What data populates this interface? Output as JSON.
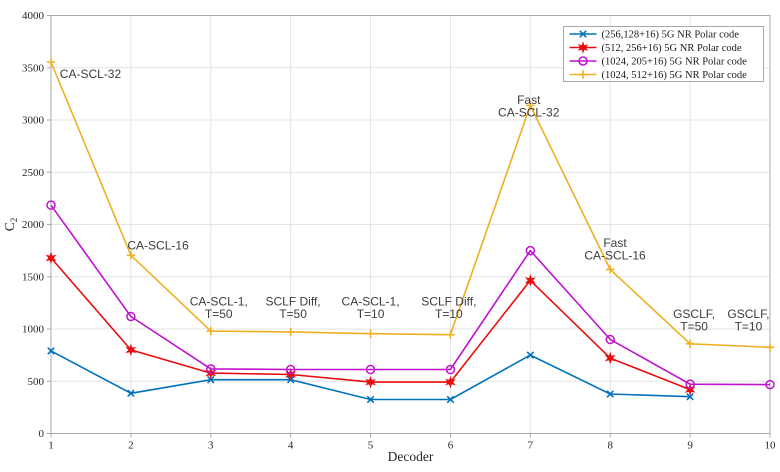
{
  "chart_data": {
    "type": "line",
    "title": "",
    "xlabel": "Decoder",
    "ylabel": {
      "text": "C",
      "subscript": "2"
    },
    "xlim": [
      1,
      10
    ],
    "ylim": [
      0,
      4000
    ],
    "xticks": [
      1,
      2,
      3,
      4,
      5,
      6,
      7,
      8,
      9,
      10
    ],
    "yticks": [
      0,
      500,
      1000,
      1500,
      2000,
      2500,
      3000,
      3500,
      4000
    ],
    "grid": true,
    "legend_position": "top-right",
    "colors": {
      "axis": "#a9a9a9",
      "grid": "#e4e4e4",
      "tick_text": "#262626",
      "annotation_text": "#3d3d3d",
      "legend_border": "#a9a9a9",
      "background": "#ffffff"
    },
    "series": [
      {
        "name": "(256,128+16) 5G NR Polar code",
        "color": "#0072BD",
        "marker": "x",
        "x": [
          1,
          2,
          3,
          4,
          5,
          6,
          7,
          8,
          9
        ],
        "y": [
          790,
          385,
          515,
          515,
          325,
          325,
          750,
          378,
          352
        ]
      },
      {
        "name": "(512, 256+16) 5G NR Polar code",
        "color": "#ea0c0c",
        "marker": "hexagram",
        "x": [
          1,
          2,
          3,
          4,
          5,
          6,
          7,
          8,
          9
        ],
        "y": [
          1680,
          800,
          578,
          565,
          492,
          492,
          1465,
          722,
          420
        ]
      },
      {
        "name": "(1024, 205+16) 5G NR Polar code",
        "color": "#bf12cf",
        "marker": "circle",
        "x": [
          1,
          2,
          3,
          4,
          5,
          6,
          7,
          8,
          9,
          10
        ],
        "y": [
          2185,
          1120,
          618,
          612,
          612,
          612,
          1750,
          900,
          472,
          468
        ]
      },
      {
        "name": "(1024, 512+16) 5G NR Polar code",
        "color": "#eeb022",
        "marker": "plus",
        "x": [
          1,
          2,
          3,
          4,
          5,
          6,
          7,
          8,
          9,
          10
        ],
        "y": [
          3555,
          1705,
          980,
          972,
          955,
          945,
          3140,
          1570,
          858,
          825
        ]
      }
    ],
    "annotations": [
      {
        "lines": [
          "CA-SCL-32"
        ],
        "x": 1.11,
        "y": 3440,
        "align": "start"
      },
      {
        "lines": [
          "CA-SCL-16"
        ],
        "x": 2.34,
        "y": 1800,
        "align": "middle"
      },
      {
        "lines": [
          "CA-SCL-1,",
          "T=50"
        ],
        "x": 3.1,
        "y": 1265,
        "align": "middle"
      },
      {
        "lines": [
          "SCLF Diff,",
          "T=50"
        ],
        "x": 4.03,
        "y": 1265,
        "align": "middle"
      },
      {
        "lines": [
          "CA-SCL-1,",
          "T=10"
        ],
        "x": 5.0,
        "y": 1265,
        "align": "middle"
      },
      {
        "lines": [
          "SCLF Diff,",
          "T=10"
        ],
        "x": 5.98,
        "y": 1265,
        "align": "middle"
      },
      {
        "lines": [
          "Fast",
          "CA-SCL-32"
        ],
        "x": 6.98,
        "y": 3190,
        "align": "middle"
      },
      {
        "lines": [
          "Fast",
          "CA-SCL-16"
        ],
        "x": 8.06,
        "y": 1822,
        "align": "middle"
      },
      {
        "lines": [
          "GSCLF,",
          "T=50"
        ],
        "x": 9.05,
        "y": 1145,
        "align": "middle"
      },
      {
        "lines": [
          "GSCLF,",
          "T=10"
        ],
        "x": 9.73,
        "y": 1145,
        "align": "middle"
      }
    ]
  }
}
